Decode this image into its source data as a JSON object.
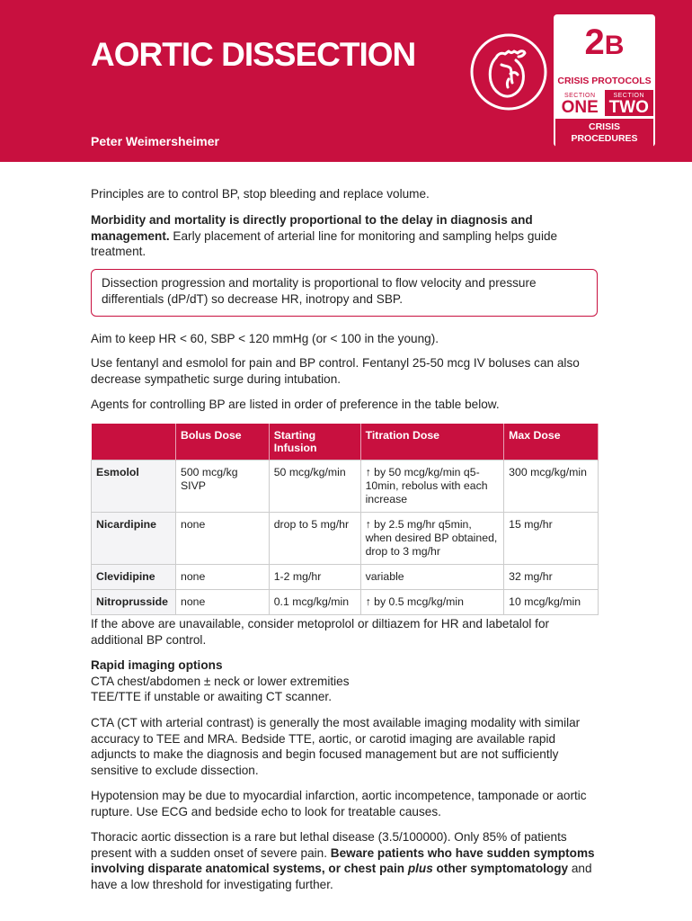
{
  "header": {
    "title": "AORTIC DISSECTION",
    "author": "Peter Weimersheimer",
    "icon": "heart-icon",
    "badge": {
      "number": "2",
      "letter": "B",
      "category": "CRISIS PROTOCOLS",
      "section_label": "SECTION",
      "section_one": "ONE",
      "section_two": "TWO",
      "subtitle_1": "CRISIS",
      "subtitle_2": "PROCEDURES"
    }
  },
  "colors": {
    "accent": "#c8103f"
  },
  "body": {
    "p1": "Principles are to control BP, stop bleeding and replace volume.",
    "p2_bold": "Morbidity and mortality is directly proportional to the delay in diagnosis and management.",
    "p2_rest": " Early placement of arterial line for monitoring and sampling helps guide treatment.",
    "callout": "Dissection progression and mortality is proportional to flow velocity and pressure differentials (dP/dT) so decrease HR, inotropy and SBP.",
    "p3": "Aim to keep HR < 60, SBP < 120 mmHg (or < 100 in the young).",
    "p4": "Use fentanyl and esmolol for pain and BP control. Fentanyl 25-50 mcg IV boluses can also decrease sympathetic surge during intubation.",
    "p5": "Agents for controlling BP are listed in order of preference in the table below.",
    "p6": "If the above are unavailable, consider metoprolol or diltiazem for HR and labetalol for additional BP control.",
    "imaging_heading": "Rapid imaging options",
    "imaging_1": "CTA chest/abdomen ± neck or lower extremities",
    "imaging_2": "TEE/TTE if unstable or awaiting CT scanner.",
    "p7": "CTA (CT with arterial contrast) is generally the most available imaging modality with similar accuracy to TEE and MRA. Bedside TTE, aortic, or carotid imaging are available rapid adjuncts to make the diagnosis and begin focused management but are not sufficiently sensitive to exclude dissection.",
    "p8": "Hypotension may be due to myocardial infarction, aortic incompetence, tamponade or aortic rupture. Use ECG and bedside echo to look for treatable causes.",
    "p9_a": "Thoracic aortic dissection is a rare but lethal disease (3.5/100000). Only 85% of patients present with a sudden onset of severe pain. ",
    "p9_b": "Beware patients who have sudden symptoms involving disparate anatomical systems, or chest pain ",
    "p9_c": "plus",
    "p9_d": " other symptomatology",
    "p9_e": " and have a low threshold for investigating further."
  },
  "table": {
    "headers": [
      "",
      "Bolus Dose",
      "Starting Infusion",
      "Titration Dose",
      "Max Dose"
    ],
    "rows": [
      [
        "Esmolol",
        "500 mcg/kg SIVP",
        "50 mcg/kg/min",
        "↑ by 50 mcg/kg/min q5-10min, rebolus with each increase",
        "300 mcg/kg/min"
      ],
      [
        "Nicardipine",
        "none",
        "drop to 5 mg/hr",
        "↑ by 2.5 mg/hr q5min, when desired BP obtained, drop to 3 mg/hr",
        "15 mg/hr"
      ],
      [
        "Clevidipine",
        "none",
        "1-2 mg/hr",
        "variable",
        "32 mg/hr"
      ],
      [
        "Nitroprusside",
        "none",
        "0.1 mcg/kg/min",
        "↑ by 0.5 mcg/kg/min",
        "10 mcg/kg/min"
      ]
    ]
  }
}
